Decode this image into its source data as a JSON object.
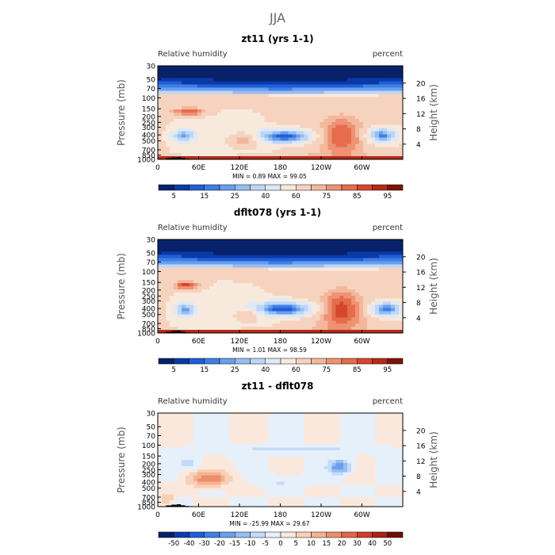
{
  "figure_title": "JJA",
  "chart_data": [
    {
      "type": "heatmap",
      "title": "zt11 (yrs 1-1)",
      "left_label": "Relative humidity",
      "right_label": "percent",
      "ylabel": "Pressure (mb)",
      "y2label": "Height (km)",
      "xticks": [
        "0",
        "60E",
        "120E",
        "180",
        "120W",
        "60W"
      ],
      "xtick_lon": [
        0,
        60,
        120,
        180,
        240,
        300
      ],
      "xlim": [
        0,
        360
      ],
      "yticks": [
        "1000",
        "850",
        "700",
        "500",
        "400",
        "300",
        "250",
        "200",
        "150",
        "100",
        "70",
        "50",
        "30"
      ],
      "ytick_p": [
        1000,
        850,
        700,
        500,
        400,
        300,
        250,
        200,
        150,
        100,
        70,
        50,
        30
      ],
      "ylim": [
        1000,
        30
      ],
      "y2ticks": [
        "20",
        "16",
        "12",
        "8",
        "4"
      ],
      "y2tick_km": [
        20,
        16,
        12,
        8,
        4
      ],
      "stats": "MIN =     0.89   MAX =    99.05",
      "colorbar_labels": [
        "5",
        "15",
        "25",
        "40",
        "60",
        "75",
        "85",
        "95"
      ],
      "levels": [
        0,
        5,
        10,
        15,
        20,
        25,
        30,
        40,
        50,
        60,
        70,
        75,
        80,
        85,
        90,
        95,
        100
      ],
      "features": [
        {
          "name": "moist boundary layer",
          "lon": [
            0,
            360
          ],
          "p": [
            1000,
            870
          ],
          "value": 92
        },
        {
          "name": "dry stratosphere",
          "lon": [
            0,
            360
          ],
          "p": [
            70,
            30
          ],
          "value": 3
        },
        {
          "name": "subtropical dry zone",
          "lon": [
            135,
            235
          ],
          "p": [
            560,
            320
          ],
          "value": 12
        },
        {
          "name": "dry region 30E",
          "lon": [
            20,
            55
          ],
          "p": [
            520,
            320
          ],
          "value": 22
        },
        {
          "name": "dry region 270E",
          "lon": [
            305,
            355
          ],
          "p": [
            560,
            300
          ],
          "value": 18
        },
        {
          "name": "upper moist band 20E-60E",
          "lon": [
            15,
            75
          ],
          "p": [
            200,
            140
          ],
          "value": 85
        },
        {
          "name": "monsoon moist column",
          "lon": [
            100,
            150
          ],
          "p": [
            700,
            350
          ],
          "value": 75
        },
        {
          "name": "east pacific moist column",
          "lon": [
            240,
            300
          ],
          "p": [
            900,
            200
          ],
          "value": 85
        }
      ]
    },
    {
      "type": "heatmap",
      "title": "dflt078 (yrs 1-1)",
      "left_label": "Relative humidity",
      "right_label": "percent",
      "ylabel": "Pressure (mb)",
      "y2label": "Height (km)",
      "xticks": [
        "0",
        "60E",
        "120E",
        "180",
        "120W",
        "60W"
      ],
      "xtick_lon": [
        0,
        60,
        120,
        180,
        240,
        300
      ],
      "xlim": [
        0,
        360
      ],
      "yticks": [
        "1000",
        "850",
        "700",
        "500",
        "400",
        "300",
        "250",
        "200",
        "150",
        "100",
        "70",
        "50",
        "30"
      ],
      "ytick_p": [
        1000,
        850,
        700,
        500,
        400,
        300,
        250,
        200,
        150,
        100,
        70,
        50,
        30
      ],
      "ylim": [
        1000,
        30
      ],
      "y2ticks": [
        "20",
        "16",
        "12",
        "8",
        "4"
      ],
      "y2tick_km": [
        20,
        16,
        12,
        8,
        4
      ],
      "stats": "MIN =     1.01   MAX =    98.59",
      "colorbar_labels": [
        "5",
        "15",
        "25",
        "40",
        "60",
        "75",
        "85",
        "95"
      ],
      "levels": [
        0,
        5,
        10,
        15,
        20,
        25,
        30,
        40,
        50,
        60,
        70,
        75,
        80,
        85,
        90,
        95,
        100
      ],
      "features": [
        {
          "name": "moist boundary layer",
          "lon": [
            0,
            360
          ],
          "p": [
            1000,
            870
          ],
          "value": 90
        },
        {
          "name": "dry stratosphere",
          "lon": [
            0,
            360
          ],
          "p": [
            70,
            30
          ],
          "value": 3
        },
        {
          "name": "subtropical dry zone",
          "lon": [
            135,
            235
          ],
          "p": [
            550,
            300
          ],
          "value": 10
        },
        {
          "name": "dry region 30E",
          "lon": [
            25,
            55
          ],
          "p": [
            550,
            320
          ],
          "value": 20
        },
        {
          "name": "dry region 270E",
          "lon": [
            310,
            360
          ],
          "p": [
            560,
            300
          ],
          "value": 15
        },
        {
          "name": "upper moist band 20E-60E",
          "lon": [
            20,
            65
          ],
          "p": [
            200,
            140
          ],
          "value": 88
        },
        {
          "name": "monsoon moist column",
          "lon": [
            110,
            150
          ],
          "p": [
            700,
            400
          ],
          "value": 70
        },
        {
          "name": "east pacific moist column",
          "lon": [
            240,
            300
          ],
          "p": [
            900,
            200
          ],
          "value": 88
        }
      ]
    },
    {
      "type": "heatmap",
      "title": "zt11 - dflt078",
      "left_label": "Relative humidity",
      "right_label": "percent",
      "ylabel": "Pressure (mb)",
      "y2label": "Height (km)",
      "xticks": [
        "0",
        "60E",
        "120E",
        "180",
        "120W",
        "60W"
      ],
      "xtick_lon": [
        0,
        60,
        120,
        180,
        240,
        300
      ],
      "xlim": [
        0,
        360
      ],
      "yticks": [
        "1000",
        "850",
        "700",
        "500",
        "400",
        "300",
        "250",
        "200",
        "150",
        "100",
        "70",
        "50",
        "30"
      ],
      "ytick_p": [
        1000,
        850,
        700,
        500,
        400,
        300,
        250,
        200,
        150,
        100,
        70,
        50,
        30
      ],
      "ylim": [
        1000,
        30
      ],
      "y2ticks": [
        "20",
        "16",
        "12",
        "8",
        "4"
      ],
      "y2tick_km": [
        20,
        16,
        12,
        8,
        4
      ],
      "stats": "MIN =   -25.99   MAX =    29.67",
      "colorbar_labels": [
        "-50",
        "-40",
        "-30",
        "-20",
        "-15",
        "-10",
        "-5",
        "0",
        "5",
        "10",
        "15",
        "20",
        "30",
        "40",
        "50"
      ],
      "levels": [
        -60,
        -50,
        -40,
        -30,
        -20,
        -15,
        -10,
        -5,
        0,
        5,
        10,
        15,
        20,
        30,
        40,
        50,
        60
      ],
      "features": [
        {
          "name": "wet anomaly 60E-100E",
          "lon": [
            40,
            110
          ],
          "p": [
            500,
            250
          ],
          "value": 18
        },
        {
          "name": "dry anomaly 270E",
          "lon": [
            250,
            285
          ],
          "p": [
            300,
            170
          ],
          "value": -20
        },
        {
          "name": "dry anomaly 60E upper",
          "lon": [
            30,
            60
          ],
          "p": [
            250,
            150
          ],
          "value": -8
        },
        {
          "name": "dry anomaly 180",
          "lon": [
            150,
            210
          ],
          "p": [
            500,
            300
          ],
          "value": -6
        },
        {
          "name": "upper dry band",
          "lon": [
            60,
            330
          ],
          "p": [
            130,
            100
          ],
          "value": -7
        },
        {
          "name": "wet anomaly 10E surface",
          "lon": [
            0,
            25
          ],
          "p": [
            950,
            600
          ],
          "value": 10
        }
      ]
    }
  ]
}
